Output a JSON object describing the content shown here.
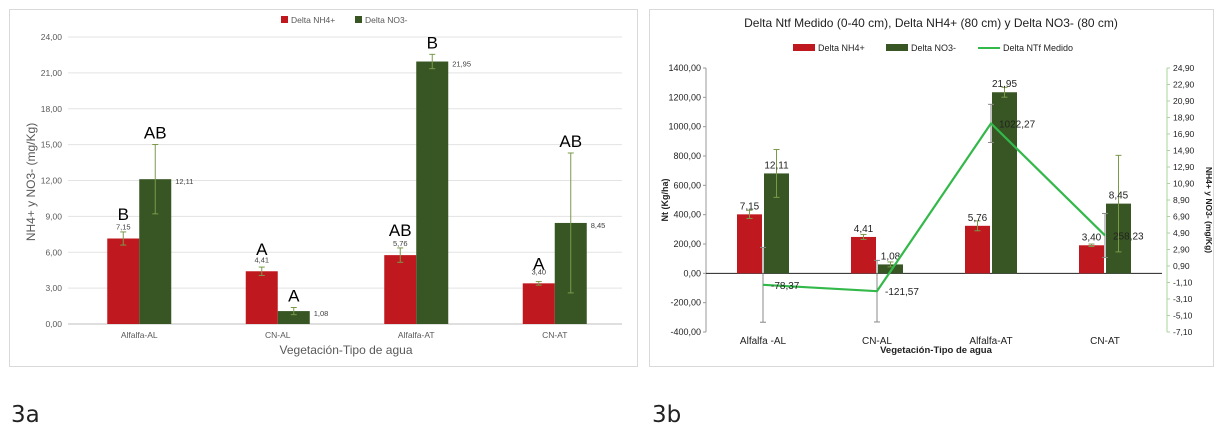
{
  "figure_labels": {
    "a": "3a",
    "b": "3b"
  },
  "colors": {
    "nh4": "#c0181f",
    "no3": "#375623",
    "ntf": "#33b84a",
    "error": "#7a9a4a"
  },
  "chart_data": [
    {
      "type": "bar",
      "title": "",
      "categories": [
        "Alfalfa-AL",
        "CN-AL",
        "Alfalfa-AT",
        "CN-AT"
      ],
      "series": [
        {
          "name": "Delta NH4+",
          "values": [
            7.15,
            4.41,
            5.76,
            3.4
          ],
          "value_labels": [
            "7,15",
            "4,41",
            "5,76",
            "3,40"
          ],
          "errors": [
            0.55,
            0.35,
            0.6,
            0.15
          ],
          "letters": [
            "B",
            "A",
            "AB",
            "A"
          ]
        },
        {
          "name": "Delta NO3-",
          "values": [
            12.11,
            1.08,
            21.95,
            8.45
          ],
          "value_labels": [
            "12,11",
            "1,08",
            "21,95",
            "8,45"
          ],
          "errors": [
            2.9,
            0.3,
            0.6,
            5.85
          ],
          "letters": [
            "AB",
            "A",
            "B",
            "AB"
          ]
        }
      ],
      "ylabel": "NH4+ y NO3- (mg/Kg)",
      "xlabel": "Vegetación-Tipo de agua",
      "ylim": [
        0,
        24
      ],
      "yticks": [
        "0,00",
        "3,00",
        "6,00",
        "9,00",
        "12,00",
        "15,00",
        "18,00",
        "21,00",
        "24,00"
      ],
      "legend_position": "top"
    },
    {
      "type": "bar",
      "title": "Delta Ntf Medido (0-40 cm), Delta NH4+ (80 cm) y Delta NO3- (80 cm)",
      "categories": [
        "Alfalfa -AL",
        "CN-AL",
        "Alfalfa-AT",
        "CN-AT"
      ],
      "series": [
        {
          "name": "Delta NH4+",
          "axis": "right",
          "values": [
            7.15,
            4.41,
            5.76,
            3.4
          ],
          "value_labels": [
            "7,15",
            "4,41",
            "5,76",
            "3,40"
          ],
          "errors": [
            0.5,
            0.3,
            0.6,
            0.15
          ]
        },
        {
          "name": "Delta NO3-",
          "axis": "right",
          "values": [
            12.11,
            1.08,
            21.95,
            8.45
          ],
          "value_labels": [
            "12,11",
            "1,08",
            "21,95",
            "8,45"
          ],
          "errors": [
            2.9,
            0.3,
            0.6,
            5.85
          ]
        },
        {
          "name": "Delta NTf Medido",
          "type": "line",
          "axis": "left",
          "values": [
            -78.37,
            -121.57,
            1022.27,
            258.23
          ],
          "value_labels": [
            "-78,37",
            "-121,57",
            "1022,27",
            "258,23"
          ],
          "errors": [
            255,
            210,
            130,
            150
          ]
        }
      ],
      "ylabel": "Nt (Kg/ha)",
      "y2label": "NH4+ y NO3- (mg/Kg)",
      "xlabel": "Vegetación-Tipo de agua",
      "ylim": [
        -400,
        1400
      ],
      "y2lim": [
        -7.1,
        24.9
      ],
      "yticks": [
        "-400,00",
        "-200,00",
        "0,00",
        "200,00",
        "400,00",
        "600,00",
        "800,00",
        "1000,00",
        "1200,00",
        "1400,00"
      ],
      "y2ticks": [
        "-7,10",
        "-5,10",
        "-3,10",
        "-1,10",
        "0,90",
        "2,90",
        "4,90",
        "6,90",
        "8,90",
        "10,90",
        "12,90",
        "14,90",
        "16,90",
        "18,90",
        "20,90",
        "22,90",
        "24,90"
      ],
      "legend_position": "top"
    }
  ]
}
